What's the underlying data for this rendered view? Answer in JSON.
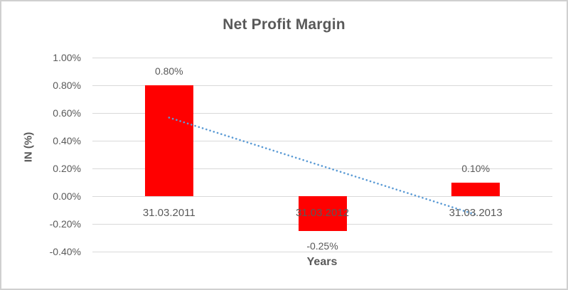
{
  "chart_data": {
    "type": "bar",
    "title": "Net Profit Margin",
    "xlabel": "Years",
    "ylabel": "IN (%)",
    "categories": [
      "31.03.2011",
      "31.03.2012",
      "31.03.2013"
    ],
    "values": [
      0.8,
      -0.25,
      0.1
    ],
    "data_labels": [
      "0.80%",
      "-0.25%",
      "0.10%"
    ],
    "ylim": [
      -0.4,
      1.0
    ],
    "yticks": [
      {
        "value": 1.0,
        "label": "1.00%"
      },
      {
        "value": 0.8,
        "label": "0.80%"
      },
      {
        "value": 0.6,
        "label": "0.60%"
      },
      {
        "value": 0.4,
        "label": "0.40%"
      },
      {
        "value": 0.2,
        "label": "0.20%"
      },
      {
        "value": 0.0,
        "label": "0.00%"
      },
      {
        "value": -0.2,
        "label": "-0.20%"
      },
      {
        "value": -0.4,
        "label": "-0.40%"
      }
    ],
    "grid": true,
    "legend": false,
    "trendline": {
      "type": "linear",
      "style": "dotted",
      "start_value": 0.567,
      "end_value": -0.133
    }
  },
  "colors": {
    "bar": "#ff0000",
    "text": "#595959",
    "gridline": "#d9d9d9",
    "trendline": "#5b9bd5",
    "border": "#d0d0d0",
    "background": "#ffffff"
  }
}
